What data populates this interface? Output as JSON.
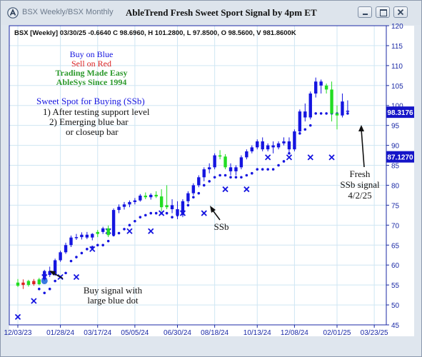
{
  "window": {
    "tab_label": "BSX Weekly/BSX Monthly",
    "title": "AbleTrend Fresh Sweet Sport Signal by 4pm ET"
  },
  "header": {
    "info": "BSX [Weekly] 03/30/25 -0.6640 C 98.6960, H 101.2800, L 97.8500, O 98.5600, V 981.8600K"
  },
  "legend": {
    "buy": "Buy on Blue",
    "sell": "Sell on Red",
    "tagline1": "Trading Made Easy",
    "tagline2": "AbleSys Since 1994"
  },
  "notes": {
    "heading": "Sweet Spot for Buying (SSb)",
    "line1": "1) After testing support level",
    "line2": "2) Emerging blue bar",
    "line3": "or closeup bar"
  },
  "annotations": {
    "buy_signal_1": "Buy signal with",
    "buy_signal_2": "large blue dot",
    "ssb": "SSb",
    "fresh1": "Fresh",
    "fresh2": "SSb signal",
    "fresh3": "4/2/25"
  },
  "colors": {
    "background": "#ffffff",
    "grid": "#cfe6f3",
    "blue": "#1515e0",
    "green": "#22dd22",
    "red": "#dd2222",
    "axis_text": "#1b2aa6",
    "price_tag_bg": "#1515c8"
  },
  "chart_data": {
    "type": "candlestick",
    "title": "AbleTrend Fresh Sweet Sport Signal by 4pm ET",
    "y_axis": {
      "min": 45,
      "max": 120,
      "step": 5,
      "ticks": [
        45,
        50,
        55,
        60,
        65,
        70,
        75,
        80,
        85,
        90,
        95,
        100,
        105,
        110,
        115,
        120
      ]
    },
    "x_tick_labels": [
      "12/03/23",
      "01/28/24",
      "03/17/24",
      "05/05/24",
      "06/30/24",
      "08/18/24",
      "10/13/24",
      "12/08/24",
      "02/01/25",
      "03/23/25"
    ],
    "x_tick_index": [
      0,
      8,
      15,
      22,
      30,
      37,
      45,
      52,
      60,
      67
    ],
    "price_tags": {
      "upper": "98.3176",
      "lower": "87.1270"
    },
    "bars": [
      [
        54.8,
        56.5,
        54.5,
        55.6,
        "green"
      ],
      [
        55.6,
        56.4,
        54.0,
        55.0,
        "red"
      ],
      [
        55.0,
        56.3,
        54.6,
        56.0,
        "green"
      ],
      [
        56.0,
        56.5,
        54.8,
        55.2,
        "red"
      ],
      [
        55.2,
        56.8,
        54.9,
        56.4,
        "green"
      ],
      [
        56.4,
        58.8,
        56.1,
        58.5,
        "blue"
      ],
      [
        58.5,
        59.6,
        57.0,
        57.5,
        "blue"
      ],
      [
        57.5,
        61.6,
        57.3,
        61.2,
        "blue"
      ],
      [
        61.2,
        63.6,
        60.8,
        63.2,
        "blue"
      ],
      [
        63.2,
        65.6,
        62.8,
        65.0,
        "blue"
      ],
      [
        65.0,
        67.4,
        64.5,
        66.9,
        "blue"
      ],
      [
        66.9,
        67.8,
        66.3,
        67.0,
        "blue"
      ],
      [
        67.0,
        68.2,
        66.4,
        67.6,
        "blue"
      ],
      [
        67.6,
        68.3,
        66.5,
        66.9,
        "blue"
      ],
      [
        66.9,
        68.0,
        66.2,
        67.8,
        "blue"
      ],
      [
        67.8,
        68.8,
        67.0,
        68.3,
        "green"
      ],
      [
        68.3,
        69.6,
        67.8,
        69.2,
        "blue"
      ],
      [
        69.2,
        69.9,
        67.0,
        67.5,
        "green"
      ],
      [
        67.5,
        74.2,
        67.3,
        73.8,
        "blue"
      ],
      [
        73.8,
        75.2,
        73.0,
        74.6,
        "blue"
      ],
      [
        74.6,
        75.8,
        73.9,
        75.2,
        "blue"
      ],
      [
        75.2,
        76.2,
        74.5,
        75.8,
        "blue"
      ],
      [
        75.8,
        76.8,
        75.2,
        76.2,
        "blue"
      ],
      [
        76.2,
        77.8,
        75.9,
        77.4,
        "blue"
      ],
      [
        77.4,
        78.2,
        76.5,
        77.0,
        "green"
      ],
      [
        77.0,
        78.0,
        76.4,
        77.6,
        "blue"
      ],
      [
        77.6,
        78.5,
        76.8,
        77.2,
        "green"
      ],
      [
        77.2,
        79.0,
        73.5,
        74.5,
        "green"
      ],
      [
        74.5,
        80.0,
        74.0,
        75.0,
        "green"
      ],
      [
        75.0,
        76.5,
        73.0,
        74.0,
        "blue"
      ],
      [
        74.0,
        76.0,
        71.5,
        72.5,
        "blue"
      ],
      [
        72.5,
        76.5,
        72.0,
        76.0,
        "blue"
      ],
      [
        76.0,
        78.5,
        75.5,
        78.0,
        "blue"
      ],
      [
        78.0,
        80.5,
        77.5,
        80.0,
        "blue"
      ],
      [
        80.0,
        82.5,
        79.5,
        82.0,
        "blue"
      ],
      [
        82.0,
        84.5,
        81.0,
        84.0,
        "blue"
      ],
      [
        84.0,
        85.5,
        83.0,
        84.5,
        "blue"
      ],
      [
        84.5,
        88.0,
        84.0,
        87.5,
        "blue"
      ],
      [
        87.5,
        88.8,
        86.5,
        87.2,
        "green"
      ],
      [
        87.2,
        87.8,
        84.0,
        84.5,
        "green"
      ],
      [
        84.5,
        85.5,
        82.5,
        83.5,
        "blue"
      ],
      [
        83.5,
        85.0,
        82.5,
        84.5,
        "blue"
      ],
      [
        84.5,
        87.5,
        84.0,
        87.0,
        "blue"
      ],
      [
        87.0,
        89.0,
        86.5,
        88.5,
        "blue"
      ],
      [
        88.5,
        90.0,
        88.0,
        89.5,
        "blue"
      ],
      [
        89.5,
        91.5,
        89.0,
        91.0,
        "blue"
      ],
      [
        91.0,
        92.0,
        88.5,
        89.0,
        "blue"
      ],
      [
        89.0,
        90.5,
        88.5,
        90.0,
        "blue"
      ],
      [
        90.0,
        91.0,
        88.0,
        89.5,
        "blue"
      ],
      [
        89.5,
        91.0,
        89.0,
        90.5,
        "blue"
      ],
      [
        90.5,
        92.0,
        90.0,
        91.0,
        "blue"
      ],
      [
        91.0,
        92.0,
        88.0,
        89.0,
        "blue"
      ],
      [
        89.0,
        94.0,
        88.5,
        93.5,
        "blue"
      ],
      [
        93.5,
        99.0,
        93.0,
        98.5,
        "blue"
      ],
      [
        98.5,
        100.5,
        96.0,
        97.0,
        "blue"
      ],
      [
        97.0,
        103.5,
        96.5,
        103.0,
        "blue"
      ],
      [
        103.0,
        107.0,
        102.0,
        106.0,
        "blue"
      ],
      [
        106.0,
        106.5,
        103.0,
        105.0,
        "blue"
      ],
      [
        105.0,
        105.5,
        103.0,
        104.0,
        "green"
      ],
      [
        104.0,
        106.0,
        96.0,
        98.0,
        "green"
      ],
      [
        98.0,
        100.0,
        94.0,
        97.5,
        "green"
      ],
      [
        97.5,
        103.0,
        97.0,
        101.0,
        "blue"
      ],
      [
        98.56,
        101.28,
        97.85,
        98.696,
        "blue"
      ]
    ],
    "trail_dots": [
      [
        4,
        54.0
      ],
      [
        5,
        53.0
      ],
      [
        6,
        54.0
      ],
      [
        7,
        56.0
      ],
      [
        8,
        57.0
      ],
      [
        9,
        58.0
      ],
      [
        10,
        61.0
      ],
      [
        11,
        62.0
      ],
      [
        12,
        63.0
      ],
      [
        13,
        64.0
      ],
      [
        14,
        64.5
      ],
      [
        15,
        65.0
      ],
      [
        16,
        65.0
      ],
      [
        17,
        66.0
      ],
      [
        18,
        67.5
      ],
      [
        19,
        68.0
      ],
      [
        20,
        69.0
      ],
      [
        21,
        70.0
      ],
      [
        22,
        71.0
      ],
      [
        23,
        72.0
      ],
      [
        24,
        72.5
      ],
      [
        25,
        73.0
      ],
      [
        26,
        73.0
      ],
      [
        27,
        73.0
      ],
      [
        28,
        73.0
      ],
      [
        29,
        72.0
      ],
      [
        30,
        72.5
      ],
      [
        31,
        74.0
      ],
      [
        32,
        75.0
      ],
      [
        33,
        77.0
      ],
      [
        34,
        78.0
      ],
      [
        35,
        80.0
      ],
      [
        36,
        81.0
      ],
      [
        37,
        82.0
      ],
      [
        38,
        82.5
      ],
      [
        39,
        82.5
      ],
      [
        40,
        82.0
      ],
      [
        41,
        82.0
      ],
      [
        42,
        82.0
      ],
      [
        43,
        82.5
      ],
      [
        44,
        83.0
      ],
      [
        45,
        84.0
      ],
      [
        46,
        84.0
      ],
      [
        47,
        84.0
      ],
      [
        48,
        84.0
      ],
      [
        49,
        85.0
      ],
      [
        50,
        86.0
      ],
      [
        51,
        88.0
      ],
      [
        52,
        91.0
      ],
      [
        53,
        93.0
      ],
      [
        54,
        94.0
      ],
      [
        55,
        95.0
      ],
      [
        56,
        98.0
      ],
      [
        57,
        98.0
      ],
      [
        58,
        98.0
      ],
      [
        59,
        98.0
      ],
      [
        60,
        98.0
      ],
      [
        61,
        98.0
      ],
      [
        62,
        98.0
      ]
    ],
    "x_markers": [
      [
        0,
        47.0
      ],
      [
        3,
        51.0
      ],
      [
        5,
        57.0
      ],
      [
        8,
        57.0
      ],
      [
        11,
        57.0
      ],
      [
        14,
        64.0
      ],
      [
        17,
        68.5
      ],
      [
        21,
        68.5
      ],
      [
        25,
        68.5
      ],
      [
        27,
        73.0
      ],
      [
        31,
        73.0
      ],
      [
        35,
        73.0
      ],
      [
        39,
        79.0
      ],
      [
        43,
        79.0
      ],
      [
        47,
        87.0
      ],
      [
        51,
        87.0
      ],
      [
        55,
        87.0
      ],
      [
        59,
        87.0
      ]
    ],
    "large_blue_dot": [
      5,
      56.0
    ]
  }
}
